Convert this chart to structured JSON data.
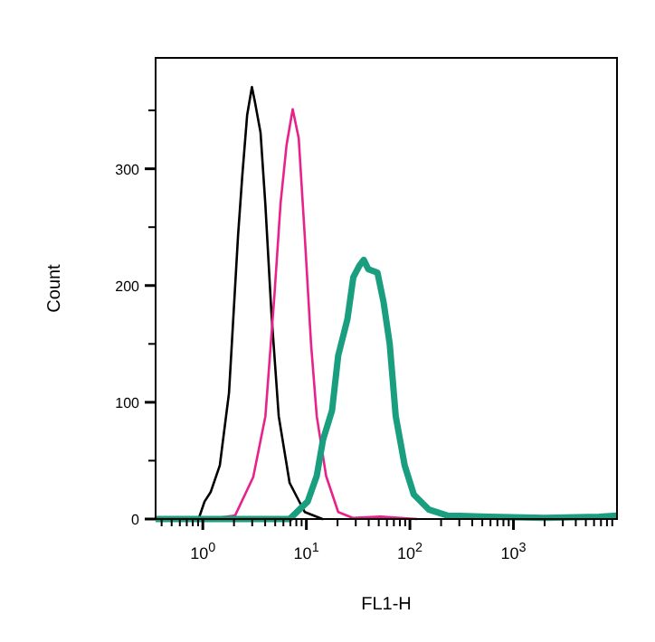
{
  "chart_data": {
    "type": "line",
    "xlabel": "FL1-H",
    "ylabel": "Count",
    "log": "x",
    "xlim": [
      0.35,
      10000
    ],
    "ylim": [
      0,
      395
    ],
    "xticks": [
      {
        "value": 0.4,
        "label": null
      },
      {
        "value": 0.5,
        "label": null
      },
      {
        "value": 0.6,
        "label": null
      },
      {
        "value": 0.7,
        "label": null
      },
      {
        "value": 0.8,
        "label": null
      },
      {
        "value": 0.9,
        "label": null
      },
      {
        "value": 1,
        "label": "10$^{0}$"
      },
      {
        "value": 2,
        "label": null
      },
      {
        "value": 3,
        "label": null
      },
      {
        "value": 4,
        "label": null
      },
      {
        "value": 5,
        "label": null
      },
      {
        "value": 6,
        "label": null
      },
      {
        "value": 7,
        "label": null
      },
      {
        "value": 8,
        "label": null
      },
      {
        "value": 9,
        "label": null
      },
      {
        "value": 10,
        "label": "10$^{1}$"
      },
      {
        "value": 20,
        "label": null
      },
      {
        "value": 30,
        "label": null
      },
      {
        "value": 40,
        "label": null
      },
      {
        "value": 50,
        "label": null
      },
      {
        "value": 60,
        "label": null
      },
      {
        "value": 70,
        "label": null
      },
      {
        "value": 80,
        "label": null
      },
      {
        "value": 90,
        "label": null
      },
      {
        "value": 100,
        "label": "10$^{2}$"
      },
      {
        "value": 200,
        "label": null
      },
      {
        "value": 300,
        "label": null
      },
      {
        "value": 400,
        "label": null
      },
      {
        "value": 500,
        "label": null
      },
      {
        "value": 600,
        "label": null
      },
      {
        "value": 700,
        "label": null
      },
      {
        "value": 800,
        "label": null
      },
      {
        "value": 900,
        "label": null
      },
      {
        "value": 1000,
        "label": "10$^{3}$"
      },
      {
        "value": 2000,
        "label": null
      },
      {
        "value": 3000,
        "label": null
      },
      {
        "value": 4000,
        "label": null
      },
      {
        "value": 5000,
        "label": null
      },
      {
        "value": 6000,
        "label": null
      },
      {
        "value": 7000,
        "label": null
      },
      {
        "value": 8000,
        "label": null
      },
      {
        "value": 9000,
        "label": null
      }
    ],
    "yticks": [
      0,
      {
        "value": 50,
        "label": null
      },
      100,
      {
        "value": 150,
        "label": null
      },
      200,
      {
        "value": 250,
        "label": null
      },
      300,
      {
        "value": 350,
        "label": null
      }
    ],
    "grid": false,
    "marker": "none",
    "line_style": "solid",
    "series": [
      {
        "color": "#000000",
        "x": [
          0.91,
          1.04,
          1.19,
          1.46,
          1.79,
          2.19,
          2.41,
          2.68,
          2.98,
          3.19,
          3.61,
          4.02,
          4.6,
          5.41,
          6.89,
          9.64,
          14.3
        ],
        "values": [
          0,
          15,
          23,
          46,
          108,
          243,
          295,
          346,
          370,
          357,
          331,
          269,
          176,
          88,
          31,
          6,
          0
        ]
      },
      {
        "color": "#e8228c",
        "x": [
          1.19,
          2.05,
          3.07,
          4.02,
          4.92,
          5.63,
          6.43,
          7.38,
          8.44,
          9.64,
          11.1,
          12.6,
          15.5,
          20.3,
          28,
          52,
          117
        ],
        "values": [
          0,
          3,
          36,
          88,
          192,
          270,
          320,
          351,
          326,
          243,
          150,
          88,
          37,
          6,
          1,
          2,
          0
        ]
      },
      {
        "color": "#1a9e80",
        "x": [
          0.35,
          3,
          6.89,
          10.3,
          12.6,
          14.5,
          17.7,
          20.3,
          24.9,
          28.4,
          32.5,
          35.8,
          39.7,
          48.6,
          55.6,
          63.8,
          73,
          89,
          109,
          153,
          230,
          590,
          2000,
          6700,
          10000
        ],
        "values": [
          0,
          0,
          0,
          15,
          37,
          68,
          93,
          140,
          171,
          207,
          217,
          222,
          214,
          211,
          186,
          150,
          88,
          46,
          21,
          8,
          3,
          2,
          1,
          2,
          3
        ]
      }
    ]
  }
}
